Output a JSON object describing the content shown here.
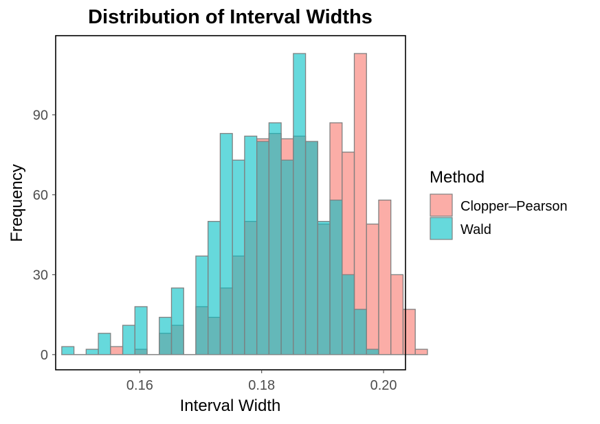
{
  "chart_data": {
    "type": "histogram",
    "title": "Distribution of Interval Widths",
    "xlabel": "Interval Width",
    "ylabel": "Frequency",
    "xlim": [
      0.1462,
      0.2036
    ],
    "ylim": [
      -5.7,
      119.7
    ],
    "x_ticks": [
      0.16,
      0.18,
      0.2
    ],
    "x_tick_labels": [
      "0.16",
      "0.18",
      "0.20"
    ],
    "y_ticks": [
      0,
      30,
      60,
      90
    ],
    "y_tick_labels": [
      "0",
      "30",
      "60",
      "90"
    ],
    "bin_start": 0.1472,
    "bin_width": 0.002,
    "legend": {
      "title": "Method",
      "placement": "right"
    },
    "series": [
      {
        "name": "Clopper–Pearson",
        "color": "#F8766D",
        "values": [
          0,
          0,
          0,
          0,
          3,
          0,
          2,
          0,
          8,
          11,
          0,
          18,
          14,
          25,
          37,
          50,
          81,
          83,
          81,
          82,
          80,
          49,
          87,
          76,
          113,
          49,
          58,
          30,
          17,
          2
        ]
      },
      {
        "name": "Wald",
        "color": "#00BFC4",
        "values": [
          3,
          0,
          2,
          8,
          0,
          11,
          18,
          0,
          14,
          25,
          0,
          37,
          50,
          83,
          73,
          82,
          80,
          87,
          73,
          113,
          80,
          50,
          58,
          30,
          17,
          2,
          0,
          0,
          0,
          0
        ]
      }
    ]
  }
}
